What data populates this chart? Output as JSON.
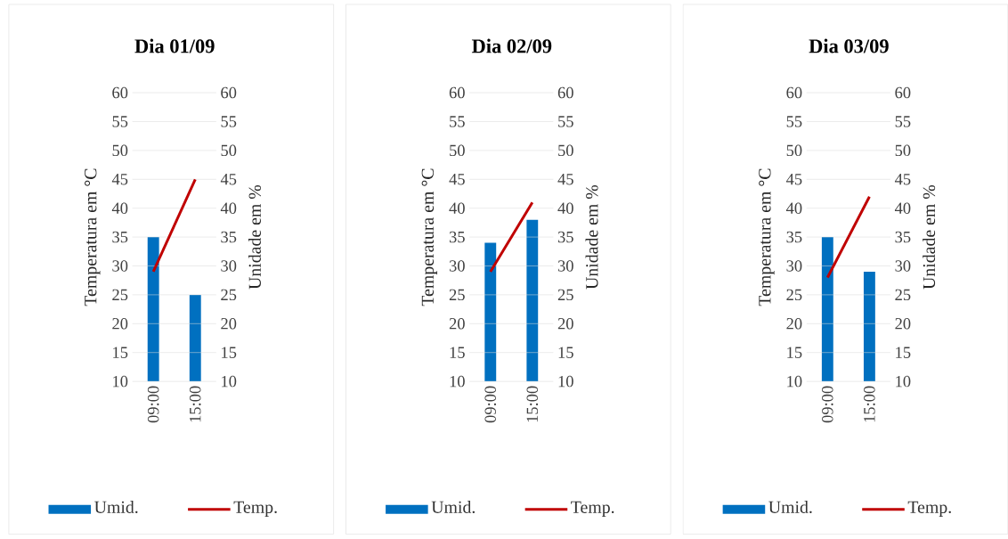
{
  "chart_data": [
    {
      "type": "bar",
      "title": "Dia 01/09",
      "ylabel": "Temperatura em °C",
      "y2label": "Unidade em %",
      "categories": [
        "09:00",
        "15:00"
      ],
      "series": [
        {
          "name": "Umid.",
          "color": "#0070c0",
          "values": [
            35,
            25
          ],
          "axis": "y2"
        },
        {
          "name": "Temp.",
          "type": "line",
          "color": "#c00000",
          "values": [
            29,
            45
          ]
        }
      ],
      "ylim": [
        10,
        60
      ],
      "yticks": [
        10,
        15,
        20,
        25,
        30,
        35,
        40,
        45,
        50,
        55,
        60
      ],
      "y2lim": [
        10,
        60
      ],
      "y2ticks": [
        10,
        15,
        20,
        25,
        30,
        35,
        40,
        45,
        50,
        55,
        60
      ],
      "grid": "y",
      "legend": "bottom"
    },
    {
      "type": "bar",
      "title": "Dia 02/09",
      "ylabel": "Temperatura em °C",
      "y2label": "Unidade em %",
      "categories": [
        "09:00",
        "15:00"
      ],
      "series": [
        {
          "name": "Umid.",
          "color": "#0070c0",
          "values": [
            34,
            38
          ],
          "axis": "y2"
        },
        {
          "name": "Temp.",
          "type": "line",
          "color": "#c00000",
          "values": [
            29,
            41
          ]
        }
      ],
      "ylim": [
        10,
        60
      ],
      "yticks": [
        10,
        15,
        20,
        25,
        30,
        35,
        40,
        45,
        50,
        55,
        60
      ],
      "y2lim": [
        10,
        60
      ],
      "y2ticks": [
        10,
        15,
        20,
        25,
        30,
        35,
        40,
        45,
        50,
        55,
        60
      ],
      "grid": "y",
      "legend": "bottom"
    },
    {
      "type": "bar",
      "title": "Dia 03/09",
      "ylabel": "Temperatura em °C",
      "y2label": "Unidade em %",
      "categories": [
        "09:00",
        "15:00"
      ],
      "series": [
        {
          "name": "Umid.",
          "color": "#0070c0",
          "values": [
            35,
            29
          ],
          "axis": "y2"
        },
        {
          "name": "Temp.",
          "type": "line",
          "color": "#c00000",
          "values": [
            28,
            42
          ]
        }
      ],
      "ylim": [
        10,
        60
      ],
      "yticks": [
        10,
        15,
        20,
        25,
        30,
        35,
        40,
        45,
        50,
        55,
        60
      ],
      "y2lim": [
        10,
        60
      ],
      "y2ticks": [
        10,
        15,
        20,
        25,
        30,
        35,
        40,
        45,
        50,
        55,
        60
      ],
      "grid": "y",
      "legend": "bottom"
    }
  ]
}
